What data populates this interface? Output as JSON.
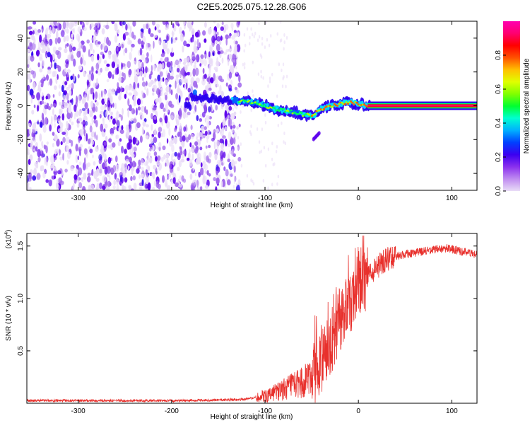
{
  "title": "C2E5.2025.075.12.28.G06",
  "chart_data": [
    {
      "type": "heatmap",
      "xlabel": "Height of straight line (km)",
      "ylabel": "Frequency (Hz)",
      "xlim": [
        -355,
        127
      ],
      "ylim": [
        -50,
        50
      ],
      "xticks": [
        -300,
        -200,
        -100,
        0,
        100
      ],
      "yticks": [
        -40,
        -20,
        0,
        20,
        40
      ],
      "colorbar": {
        "label": "Normalized spectral amplitude",
        "range": [
          0,
          1
        ],
        "ticks": [
          0.0,
          0.2,
          0.4,
          0.6,
          0.8
        ]
      },
      "signal_track": [
        {
          "x": -180,
          "y": 5
        },
        {
          "x": -130,
          "y": 3
        },
        {
          "x": -110,
          "y": 2
        },
        {
          "x": -90,
          "y": -2
        },
        {
          "x": -75,
          "y": -3
        },
        {
          "x": -60,
          "y": -5
        },
        {
          "x": -50,
          "y": -6
        },
        {
          "x": -40,
          "y": -2
        },
        {
          "x": -30,
          "y": 0
        },
        {
          "x": -20,
          "y": 1
        },
        {
          "x": -10,
          "y": 2
        },
        {
          "x": 0,
          "y": 1
        },
        {
          "x": 10,
          "y": 0
        },
        {
          "x": 127,
          "y": 0
        }
      ],
      "noise_region_x": [
        -355,
        -135
      ],
      "color_map": [
        "#e9dcf7",
        "#a066ec",
        "#5c00ec",
        "#2a00f0",
        "#0066ff",
        "#00e0ff",
        "#00ff60",
        "#aaff00",
        "#ffd000",
        "#ff6000",
        "#ff0000",
        "#ff0080",
        "#ff00c0"
      ]
    },
    {
      "type": "line",
      "xlabel": "Height of straight line (km)",
      "ylabel": "SNR (10 * v/v)",
      "ylabel_multiplier": "(x10",
      "ylabel_multiplier_exp": "4",
      "ylabel_multiplier_close": ")",
      "xlim": [
        -355,
        127
      ],
      "ylim": [
        0,
        1.62
      ],
      "xticks": [
        -300,
        -200,
        -100,
        0,
        100
      ],
      "yticks": [
        0.5,
        1.0,
        1.5
      ],
      "ytick_labels": [
        "0.5",
        "1.0",
        "1.5"
      ],
      "series_color": "#e8302c",
      "profile": [
        {
          "x": -355,
          "y": 0.025
        },
        {
          "x": -200,
          "y": 0.025
        },
        {
          "x": -150,
          "y": 0.03
        },
        {
          "x": -120,
          "y": 0.04
        },
        {
          "x": -100,
          "y": 0.07
        },
        {
          "x": -85,
          "y": 0.12
        },
        {
          "x": -70,
          "y": 0.16
        },
        {
          "x": -60,
          "y": 0.2
        },
        {
          "x": -50,
          "y": 0.26
        },
        {
          "x": -40,
          "y": 0.38
        },
        {
          "x": -30,
          "y": 0.55
        },
        {
          "x": -20,
          "y": 0.75
        },
        {
          "x": -10,
          "y": 0.95
        },
        {
          "x": 0,
          "y": 1.08
        },
        {
          "x": 10,
          "y": 1.2
        },
        {
          "x": 20,
          "y": 1.3
        },
        {
          "x": 30,
          "y": 1.38
        },
        {
          "x": 50,
          "y": 1.42
        },
        {
          "x": 70,
          "y": 1.45
        },
        {
          "x": 95,
          "y": 1.48
        },
        {
          "x": 110,
          "y": 1.45
        },
        {
          "x": 127,
          "y": 1.42
        }
      ]
    }
  ]
}
